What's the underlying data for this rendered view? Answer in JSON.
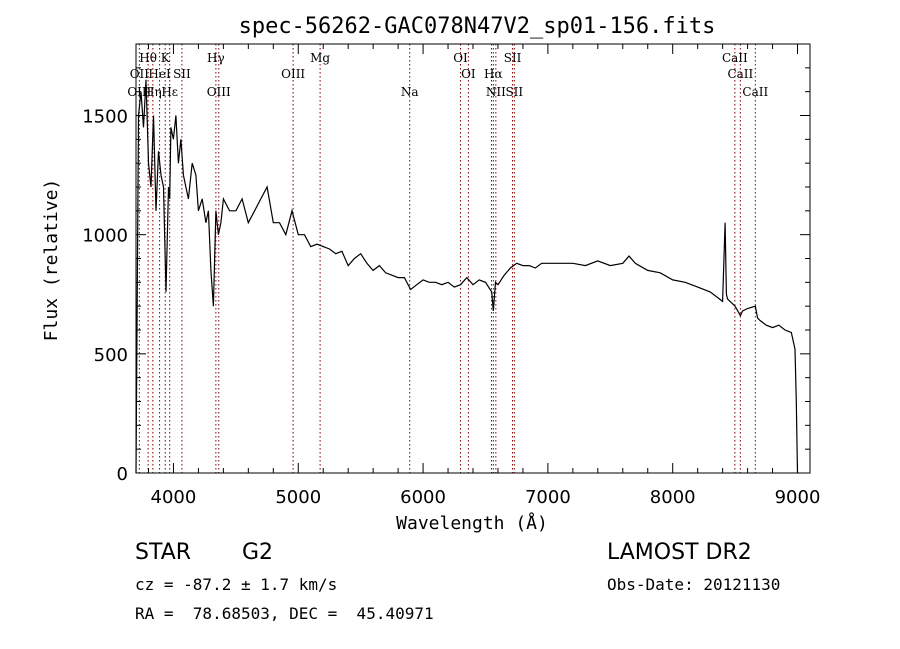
{
  "chart_data": {
    "type": "line",
    "title": "spec-56262-GAC078N47V2_sp01-156.fits",
    "xlabel": "Wavelength (Å)",
    "ylabel": "Flux (relative)",
    "xlim": [
      3700,
      9100
    ],
    "ylim": [
      0,
      1800
    ],
    "xticks": [
      4000,
      5000,
      6000,
      7000,
      8000,
      9000
    ],
    "yticks": [
      0,
      500,
      1000,
      1500
    ],
    "grid": false,
    "series": [
      {
        "x": [
          3700,
          3720,
          3740,
          3760,
          3780,
          3800,
          3820,
          3840,
          3860,
          3880,
          3900,
          3920,
          3940,
          3960,
          3970,
          3980,
          4000,
          4020,
          4040,
          4060,
          4080,
          4100,
          4120,
          4150,
          4180,
          4200,
          4230,
          4260,
          4280,
          4300,
          4320,
          4340,
          4360,
          4380,
          4400,
          4450,
          4500,
          4550,
          4600,
          4650,
          4700,
          4750,
          4800,
          4850,
          4900,
          4950,
          5000,
          5050,
          5100,
          5150,
          5200,
          5250,
          5300,
          5350,
          5400,
          5450,
          5500,
          5550,
          5600,
          5650,
          5700,
          5750,
          5800,
          5850,
          5900,
          5950,
          6000,
          6050,
          6100,
          6150,
          6200,
          6250,
          6300,
          6350,
          6400,
          6450,
          6500,
          6550,
          6563,
          6580,
          6600,
          6650,
          6700,
          6750,
          6800,
          6850,
          6900,
          6950,
          7000,
          7100,
          7200,
          7300,
          7400,
          7500,
          7600,
          7650,
          7700,
          7800,
          7900,
          8000,
          8100,
          8200,
          8300,
          8350,
          8400,
          8420,
          8430,
          8440,
          8460,
          8500,
          8542,
          8560,
          8600,
          8662,
          8680,
          8700,
          8750,
          8800,
          8850,
          8900,
          8950,
          8980,
          8990,
          9000
        ],
        "y": [
          0,
          1500,
          1600,
          1450,
          1650,
          1300,
          1200,
          1500,
          1100,
          1350,
          1250,
          1200,
          760,
          1200,
          1150,
          1450,
          1400,
          1500,
          1300,
          1400,
          1250,
          1200,
          1150,
          1300,
          1250,
          1100,
          1150,
          1050,
          1100,
          850,
          700,
          1100,
          1000,
          1050,
          1150,
          1100,
          1100,
          1150,
          1050,
          1100,
          1150,
          1200,
          1050,
          1050,
          1000,
          1100,
          1000,
          1000,
          950,
          960,
          950,
          940,
          920,
          930,
          870,
          900,
          920,
          880,
          850,
          870,
          840,
          830,
          820,
          820,
          770,
          790,
          810,
          800,
          800,
          790,
          800,
          780,
          790,
          820,
          790,
          810,
          800,
          760,
          680,
          800,
          790,
          830,
          860,
          880,
          870,
          870,
          860,
          880,
          880,
          880,
          880,
          870,
          890,
          870,
          880,
          910,
          880,
          850,
          840,
          810,
          800,
          780,
          760,
          740,
          720,
          1050,
          750,
          730,
          720,
          700,
          660,
          680,
          690,
          700,
          650,
          640,
          620,
          610,
          620,
          600,
          590,
          520,
          300,
          0
        ]
      }
    ],
    "line_markers": [
      {
        "label": "Hθ",
        "x": 3797,
        "row": 1
      },
      {
        "label": "K",
        "x": 3934,
        "row": 1
      },
      {
        "label": "Hγ",
        "x": 4340,
        "row": 1
      },
      {
        "label": "Mg",
        "x": 5175,
        "row": 1
      },
      {
        "label": "OI",
        "x": 6300,
        "row": 1
      },
      {
        "label": "SII",
        "x": 6717,
        "row": 1
      },
      {
        "label": "CaII",
        "x": 8498,
        "row": 1
      },
      {
        "label": "OII",
        "x": 3727,
        "row": 2
      },
      {
        "label": "HeI",
        "x": 3889,
        "row": 2
      },
      {
        "label": "SII",
        "x": 4068,
        "row": 2
      },
      {
        "label": "OIII",
        "x": 4959,
        "row": 2
      },
      {
        "label": "OI",
        "x": 6363,
        "row": 2
      },
      {
        "label": "Hα",
        "x": 6563,
        "row": 2
      },
      {
        "label": "CaII",
        "x": 8542,
        "row": 2
      },
      {
        "label": "OIII",
        "x": 3727,
        "row": 3
      },
      {
        "label": "Hη",
        "x": 3835,
        "row": 3
      },
      {
        "label": "Hε",
        "x": 3970,
        "row": 3
      },
      {
        "label": "OIII",
        "x": 4363,
        "row": 3
      },
      {
        "label": "Na",
        "x": 5893,
        "row": 3
      },
      {
        "label": "NII",
        "x": 6583,
        "row": 3
      },
      {
        "label": "SII",
        "x": 6731,
        "row": 3
      },
      {
        "label": "CaII",
        "x": 8662,
        "row": 3
      }
    ],
    "marker_lines_x": [
      3727,
      3797,
      3835,
      3889,
      3934,
      3970,
      4068,
      4340,
      4363,
      4959,
      5175,
      5893,
      6300,
      6363,
      6548,
      6563,
      6583,
      6717,
      6731,
      8498,
      8542,
      8662
    ],
    "colors": {
      "spectrum": "#000000",
      "marker": "#8b0000"
    }
  },
  "info": {
    "class": "STAR",
    "subclass": "G2",
    "survey": "LAMOST DR2",
    "cz": "cz = -87.2 ± 1.7 km/s",
    "obs_date": "Obs-Date: 20121130",
    "coords": "RA =  78.68503, DEC =  45.40971"
  }
}
